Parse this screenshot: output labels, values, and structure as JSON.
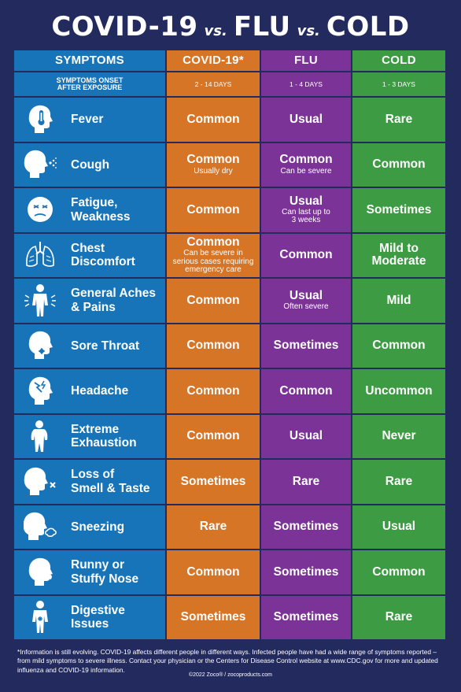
{
  "title": {
    "part1": "COVID-19",
    "vs1": "vs.",
    "part2": "FLU",
    "vs2": "vs.",
    "part3": "COLD"
  },
  "headers": {
    "symptoms": "SYMPTOMS",
    "covid": "COVID-19*",
    "flu": "FLU",
    "cold": "COLD"
  },
  "onset": {
    "label_line1": "SYMPTOMS ONSET",
    "label_line2": "AFTER EXPOSURE",
    "covid": "2 - 14 DAYS",
    "flu": "1 - 4 DAYS",
    "cold": "1 - 3 DAYS"
  },
  "rows": [
    {
      "icon": "fever-thermometer-icon",
      "label": "Fever",
      "covid": "Common",
      "covid_note": "",
      "flu": "Usual",
      "flu_note": "",
      "cold": "Rare"
    },
    {
      "icon": "cough-icon",
      "label": "Cough",
      "covid": "Common",
      "covid_note": "Usually dry",
      "flu": "Common",
      "flu_note": "Can be severe",
      "cold": "Common"
    },
    {
      "icon": "fatigue-icon",
      "label": "Fatigue,\nWeakness",
      "covid": "Common",
      "covid_note": "",
      "flu": "Usual",
      "flu_note": "Can last up to\n3 weeks",
      "cold": "Sometimes"
    },
    {
      "icon": "lungs-icon",
      "label": "Chest\nDiscomfort",
      "covid": "Common",
      "covid_note": "Can be severe in\nserious cases requiring\nemergency care",
      "flu": "Common",
      "flu_note": "",
      "cold": "Mild to\nModerate"
    },
    {
      "icon": "body-aches-icon",
      "label": "General Aches\n& Pains",
      "covid": "Common",
      "covid_note": "",
      "flu": "Usual",
      "flu_note": "Often severe",
      "cold": "Mild"
    },
    {
      "icon": "sore-throat-icon",
      "label": "Sore Throat",
      "covid": "Common",
      "covid_note": "",
      "flu": "Sometimes",
      "flu_note": "",
      "cold": "Common"
    },
    {
      "icon": "headache-icon",
      "label": "Headache",
      "covid": "Common",
      "covid_note": "",
      "flu": "Common",
      "flu_note": "",
      "cold": "Uncommon"
    },
    {
      "icon": "exhaustion-icon",
      "label": "Extreme\nExhaustion",
      "covid": "Common",
      "covid_note": "",
      "flu": "Usual",
      "flu_note": "",
      "cold": "Never"
    },
    {
      "icon": "loss-of-smell-icon",
      "label": "Loss of\nSmell & Taste",
      "covid": "Sometimes",
      "covid_note": "",
      "flu": "Rare",
      "flu_note": "",
      "cold": "Rare"
    },
    {
      "icon": "sneezing-icon",
      "label": "Sneezing",
      "covid": "Rare",
      "covid_note": "",
      "flu": "Sometimes",
      "flu_note": "",
      "cold": "Usual"
    },
    {
      "icon": "runny-nose-icon",
      "label": "Runny or\nStuffy Nose",
      "covid": "Common",
      "covid_note": "",
      "flu": "Sometimes",
      "flu_note": "",
      "cold": "Common"
    },
    {
      "icon": "digestive-icon",
      "label": "Digestive\nIssues",
      "covid": "Sometimes",
      "covid_note": "",
      "flu": "Sometimes",
      "flu_note": "",
      "cold": "Rare"
    }
  ],
  "footer": {
    "disclaimer": "*Information is still evolving. COVID-19 affects different people in different ways. Infected people have had a wide range of symptoms reported – from mild symptoms to severe illness. Contact your physician or the Centers for Disease Control website at www.CDC.gov for more and updated influenza and COVID-19 information.",
    "copyright": "©2022 Zoco® / zocoproducts.com"
  },
  "colors": {
    "background": "#222a5e",
    "symptoms": "#1874b8",
    "covid": "#d77527",
    "flu": "#7c3397",
    "cold": "#3d9c43"
  }
}
